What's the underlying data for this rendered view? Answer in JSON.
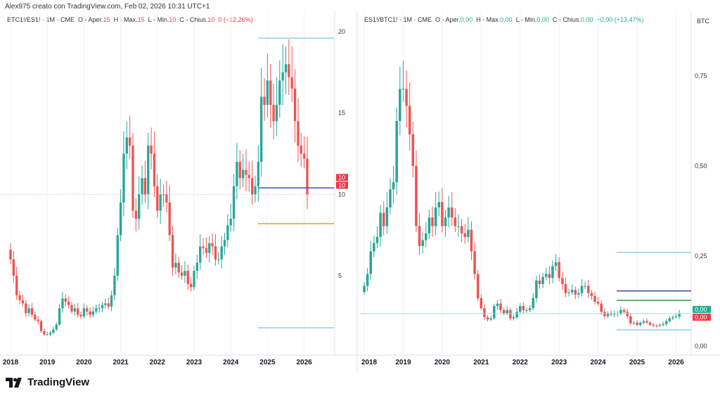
{
  "header": "Alex975 creato con TradingView.com, Feb 02, 2026 10:31 UTC+1",
  "left": {
    "symbol": "BTC1!/ES1! · 1M · CME",
    "o_label": "O - Aper.",
    "o": "15",
    "h_label": "H - Max.",
    "h": "15",
    "l_label": "L - Min.",
    "l": "10",
    "c_label": "C - Chius.",
    "c": "10",
    "change": "0 (−12,26%)",
    "yticks": [
      {
        "v": 20,
        "t": "20"
      },
      {
        "v": 15,
        "t": "15"
      },
      {
        "v": 10,
        "t": "10"
      },
      {
        "v": 5,
        "t": "5"
      }
    ],
    "price_labels": [
      "10",
      "10"
    ],
    "closes": [
      6.0,
      5.0,
      3.8,
      3.5,
      3.3,
      2.7,
      3.0,
      2.6,
      2.3,
      2.2,
      1.6,
      1.4,
      1.4,
      1.5,
      1.7,
      2.0,
      3.0,
      3.6,
      3.4,
      3.2,
      2.8,
      3.0,
      2.6,
      2.5,
      3.0,
      2.8,
      2.6,
      2.8,
      3.0,
      3.0,
      3.2,
      3.3,
      3.1,
      3.8,
      5.0,
      7.5,
      9.5,
      12.5,
      13.5,
      13.0,
      9.0,
      8.5,
      10.0,
      11.0,
      10.0,
      13.0,
      12.5,
      10.5,
      9.0,
      10.0,
      10.0,
      9.5,
      7.5,
      5.5,
      5.8,
      5.2,
      5.0,
      5.3,
      4.5,
      4.3,
      5.3,
      5.8,
      6.8,
      6.7,
      6.4,
      7.0,
      6.8,
      6.0,
      6.0,
      6.8,
      7.2,
      8.1,
      8.5,
      10.5,
      12.0,
      11.0,
      11.5,
      11.2,
      11.0,
      10.0,
      10.5,
      12.0,
      16.0,
      15.5,
      17.0,
      15.5,
      14.5,
      15.5,
      17.0,
      17.5,
      18.0,
      17.2,
      16.5,
      14.5,
      13.0,
      12.5,
      12.2,
      10.0
    ],
    "first_open": 6.6,
    "levels": [
      {
        "v": 19.6,
        "color": "#8fd3e8"
      },
      {
        "v": 10.4,
        "color": "#3f51b5"
      },
      {
        "v": 8.2,
        "color": "#ff9800"
      },
      {
        "v": 1.8,
        "color": "#8fd3e8"
      }
    ]
  },
  "right": {
    "symbol": "ES1!/BTC1! · 1M · CME",
    "o_label": "O - Aper.",
    "o": "0,00",
    "h_label": "H - Max.",
    "h": "0,00",
    "l_label": "L - Min.",
    "l": "0,00",
    "c_label": "C - Chius.",
    "c": "0,00",
    "change": "+0,00 (+13,47%)",
    "currency": "BTC",
    "yticks": [
      {
        "v": 0.75,
        "t": "0,75"
      },
      {
        "v": 0.5,
        "t": "0,50"
      },
      {
        "v": 0.25,
        "t": "0,25"
      },
      {
        "v": 0,
        "t": "0,00"
      }
    ],
    "price_labels": [
      "0,00",
      "0,00"
    ],
    "closes": [
      0.167,
      0.2,
      0.263,
      0.286,
      0.303,
      0.37,
      0.333,
      0.385,
      0.435,
      0.455,
      0.625,
      0.714,
      0.714,
      0.667,
      0.588,
      0.5,
      0.333,
      0.278,
      0.294,
      0.313,
      0.357,
      0.333,
      0.385,
      0.4,
      0.333,
      0.357,
      0.385,
      0.357,
      0.333,
      0.333,
      0.313,
      0.303,
      0.323,
      0.263,
      0.2,
      0.133,
      0.105,
      0.08,
      0.074,
      0.077,
      0.111,
      0.118,
      0.1,
      0.091,
      0.1,
      0.077,
      0.08,
      0.095,
      0.111,
      0.1,
      0.1,
      0.105,
      0.133,
      0.182,
      0.172,
      0.192,
      0.2,
      0.189,
      0.222,
      0.233,
      0.189,
      0.172,
      0.147,
      0.149,
      0.156,
      0.143,
      0.147,
      0.167,
      0.167,
      0.147,
      0.139,
      0.123,
      0.118,
      0.095,
      0.083,
      0.091,
      0.087,
      0.089,
      0.091,
      0.1,
      0.095,
      0.083,
      0.063,
      0.065,
      0.059,
      0.065,
      0.069,
      0.065,
      0.059,
      0.057,
      0.056,
      0.058,
      0.061,
      0.069,
      0.077,
      0.08,
      0.082,
      0.09
    ],
    "first_open": 0.15,
    "levels": [
      {
        "v": 0.26,
        "color": "#8fd3e8"
      },
      {
        "v": 0.153,
        "color": "#3f3f9f"
      },
      {
        "v": 0.127,
        "color": "#2e9e4f"
      },
      {
        "v": 0.045,
        "color": "#8fd3e8"
      }
    ]
  },
  "xticks": [
    "2018",
    "2019",
    "2020",
    "2021",
    "2022",
    "2023",
    "2024",
    "2025",
    "2026"
  ],
  "colors": {
    "up": "#26a69a",
    "down": "#ef5350"
  },
  "logo": "TradingView"
}
